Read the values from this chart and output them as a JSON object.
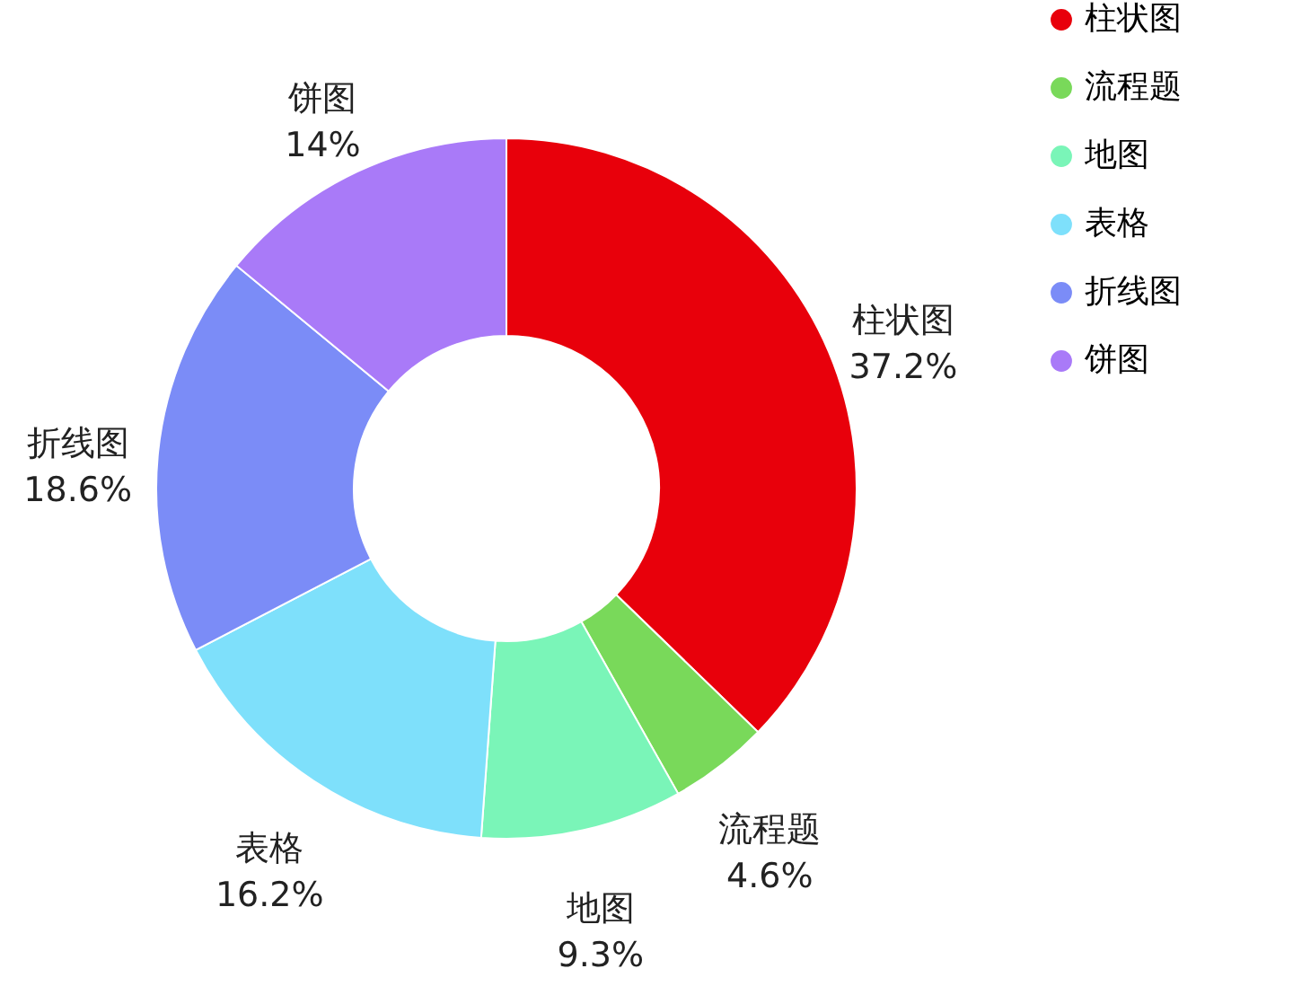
{
  "chart_data": {
    "type": "donut",
    "categories": [
      "柱状图",
      "流程题",
      "地图",
      "表格",
      "折线图",
      "饼图"
    ],
    "values": [
      37.2,
      4.6,
      9.3,
      16.2,
      18.6,
      14
    ],
    "value_labels": [
      "37.2%",
      "4.6%",
      "9.3%",
      "16.2%",
      "18.6%",
      "14%"
    ],
    "colors": [
      "#e8000b",
      "#79d95a",
      "#7af5b8",
      "#7ee0fb",
      "#7b8cf7",
      "#a97af8"
    ],
    "legend": "right"
  }
}
